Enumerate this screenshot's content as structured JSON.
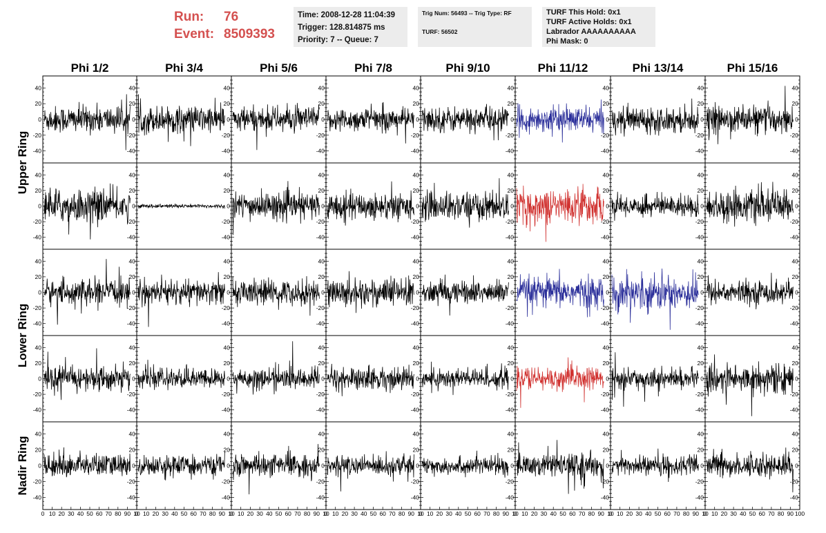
{
  "header": {
    "run_label": "Run:",
    "run_value": "76",
    "event_label": "Event:",
    "event_value": "8509393"
  },
  "info_boxes": {
    "time": {
      "time_line": "Time: 2008-12-28 11:04:39",
      "trigger_line": "Trigger: 128.814875 ms",
      "priority_line": "Priority: 7 -- Queue: 7"
    },
    "trig": {
      "trig_line": "Trig Num: 56493 -- Trig Type: RF",
      "turf_line": "TURF: 56502"
    },
    "turf": {
      "hold_line": "TURF This Hold: 0x1",
      "active_line": "TURF Active Holds: 0x1",
      "labrador_line": "Labrador AAAAAAAAAA",
      "mask_line": "Phi Mask: 0"
    }
  },
  "colors": {
    "black": "#000000",
    "blue": "#2b2f9a",
    "red": "#d0302e",
    "accent_text": "#d4504f"
  },
  "chart_data": {
    "type": "line",
    "columns": [
      "Phi 1/2",
      "Phi 3/4",
      "Phi 5/6",
      "Phi 7/8",
      "Phi 9/10",
      "Phi 11/12",
      "Phi 13/14",
      "Phi 15/16"
    ],
    "rows": [
      "Upper Ring",
      "Upper Ring",
      "Lower Ring",
      "Lower Ring",
      "Nadir Ring"
    ],
    "row_group_labels": [
      "Upper Ring",
      "Lower Ring",
      "Nadir Ring"
    ],
    "ylim": [
      -50,
      50
    ],
    "y_ticks": [
      "40",
      "20",
      "0",
      "-20",
      "-40"
    ],
    "xlim": [
      0,
      100
    ],
    "x_ticks_first": [
      "0",
      "10",
      "20",
      "30",
      "40",
      "50",
      "60",
      "70",
      "80",
      "90",
      "10"
    ],
    "x_ticks_last": [
      "0",
      "10",
      "20",
      "30",
      "40",
      "50",
      "60",
      "70",
      "80",
      "90",
      "100"
    ],
    "n_samples": 260,
    "panels": [
      [
        {
          "color": "black",
          "amp": 14
        },
        {
          "color": "black",
          "amp": 14
        },
        {
          "color": "black",
          "amp": 13
        },
        {
          "color": "black",
          "amp": 12
        },
        {
          "color": "black",
          "amp": 13
        },
        {
          "color": "blue",
          "amp": 13
        },
        {
          "color": "black",
          "amp": 13
        },
        {
          "color": "black",
          "amp": 14
        }
      ],
      [
        {
          "color": "black",
          "amp": 17
        },
        {
          "color": "black",
          "amp": 2
        },
        {
          "color": "black",
          "amp": 14
        },
        {
          "color": "black",
          "amp": 14
        },
        {
          "color": "black",
          "amp": 15
        },
        {
          "color": "red",
          "amp": 18
        },
        {
          "color": "black",
          "amp": 11
        },
        {
          "color": "black",
          "amp": 16
        }
      ],
      [
        {
          "color": "black",
          "amp": 13
        },
        {
          "color": "black",
          "amp": 13
        },
        {
          "color": "black",
          "amp": 13
        },
        {
          "color": "black",
          "amp": 15
        },
        {
          "color": "black",
          "amp": 12
        },
        {
          "color": "blue",
          "amp": 16
        },
        {
          "color": "blue",
          "amp": 18
        },
        {
          "color": "black",
          "amp": 12
        }
      ],
      [
        {
          "color": "black",
          "amp": 13
        },
        {
          "color": "black",
          "amp": 10
        },
        {
          "color": "black",
          "amp": 11
        },
        {
          "color": "black",
          "amp": 12
        },
        {
          "color": "black",
          "amp": 11
        },
        {
          "color": "red",
          "amp": 12
        },
        {
          "color": "black",
          "amp": 10
        },
        {
          "color": "black",
          "amp": 15
        }
      ],
      [
        {
          "color": "black",
          "amp": 12
        },
        {
          "color": "black",
          "amp": 10
        },
        {
          "color": "black",
          "amp": 11
        },
        {
          "color": "black",
          "amp": 10
        },
        {
          "color": "black",
          "amp": 9
        },
        {
          "color": "black",
          "amp": 12
        },
        {
          "color": "black",
          "amp": 10
        },
        {
          "color": "black",
          "amp": 12
        }
      ]
    ]
  }
}
